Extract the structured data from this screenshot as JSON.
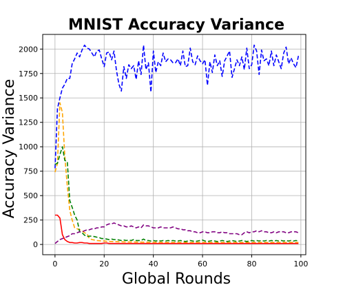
{
  "chart_data": {
    "type": "line",
    "title": "MNIST Accuracy Variance",
    "xlabel": "Global Rounds",
    "ylabel": "Accuracy Variance",
    "xlim": [
      -5,
      102
    ],
    "ylim": [
      -105,
      2150
    ],
    "xticks": [
      0,
      20,
      40,
      60,
      80,
      100
    ],
    "yticks": [
      0,
      250,
      500,
      750,
      1000,
      1250,
      1500,
      1750,
      2000
    ],
    "grid": true,
    "x": [
      0,
      1,
      2,
      3,
      4,
      5,
      6,
      7,
      8,
      9,
      10,
      11,
      12,
      13,
      14,
      15,
      16,
      17,
      18,
      19,
      20,
      21,
      22,
      23,
      24,
      25,
      26,
      27,
      28,
      29,
      30,
      31,
      32,
      33,
      34,
      35,
      36,
      37,
      38,
      39,
      40,
      41,
      42,
      43,
      44,
      45,
      46,
      47,
      48,
      49,
      50,
      51,
      52,
      53,
      54,
      55,
      56,
      57,
      58,
      59,
      60,
      61,
      62,
      63,
      64,
      65,
      66,
      67,
      68,
      69,
      70,
      71,
      72,
      73,
      74,
      75,
      76,
      77,
      78,
      79,
      80,
      81,
      82,
      83,
      84,
      85,
      86,
      87,
      88,
      89,
      90,
      91,
      92,
      93,
      94,
      95,
      96,
      97,
      98,
      99
    ],
    "series": [
      {
        "color": "#0000ff",
        "style": "dashed",
        "values": [
          780,
          1390,
          1500,
          1600,
          1640,
          1700,
          1700,
          1850,
          1900,
          1960,
          1920,
          1990,
          2040,
          2010,
          2000,
          1960,
          1920,
          1980,
          1990,
          1900,
          1820,
          1960,
          1970,
          1890,
          1980,
          1780,
          1640,
          1570,
          1820,
          1700,
          1840,
          1800,
          1830,
          1690,
          1880,
          1740,
          2040,
          1790,
          1860,
          1560,
          1980,
          1760,
          1870,
          1830,
          1960,
          1870,
          1900,
          1890,
          1860,
          1860,
          1900,
          1830,
          1980,
          1820,
          1830,
          2010,
          1870,
          1840,
          1930,
          1880,
          1850,
          1890,
          1630,
          1870,
          1760,
          1940,
          1830,
          1880,
          1720,
          1880,
          1930,
          1980,
          1710,
          1800,
          1890,
          1830,
          1920,
          1790,
          2010,
          1800,
          1840,
          2040,
          1980,
          1740,
          1990,
          1880,
          1900,
          1830,
          1980,
          1830,
          1940,
          1870,
          1800,
          1960,
          2020,
          1850,
          1910,
          1850,
          1810,
          1930
        ]
      },
      {
        "color": "#ffa500",
        "style": "dashed",
        "values": [
          740,
          830,
          1450,
          1350,
          900,
          600,
          350,
          250,
          170,
          160,
          150,
          140,
          120,
          110,
          60,
          50,
          45,
          40,
          38,
          35,
          35,
          32,
          30,
          30,
          28,
          28,
          27,
          27,
          26,
          26,
          25,
          25,
          25,
          24,
          24,
          24,
          23,
          23,
          22,
          22,
          22,
          21,
          21,
          21,
          20,
          20,
          20,
          20,
          20,
          20,
          20,
          20,
          20,
          20,
          20,
          20,
          20,
          20,
          20,
          20,
          20,
          20,
          20,
          20,
          20,
          20,
          20,
          20,
          20,
          20,
          20,
          20,
          20,
          20,
          20,
          20,
          20,
          20,
          20,
          20,
          20,
          20,
          20,
          20,
          20,
          20,
          20,
          20,
          20,
          20,
          20,
          20,
          20,
          20,
          20,
          20,
          20,
          20,
          20,
          20
        ]
      },
      {
        "color": "#008000",
        "style": "dashed",
        "values": [
          820,
          830,
          920,
          1000,
          860,
          850,
          450,
          380,
          300,
          250,
          130,
          120,
          95,
          80,
          85,
          85,
          80,
          75,
          70,
          60,
          60,
          55,
          50,
          55,
          50,
          50,
          45,
          40,
          45,
          40,
          45,
          40,
          50,
          40,
          40,
          40,
          55,
          40,
          40,
          35,
          40,
          35,
          40,
          35,
          40,
          35,
          40,
          35,
          40,
          35,
          35,
          40,
          35,
          30,
          35,
          40,
          35,
          30,
          35,
          40,
          45,
          35,
          30,
          35,
          40,
          35,
          30,
          35,
          40,
          35,
          30,
          35,
          40,
          35,
          30,
          35,
          40,
          35,
          30,
          35,
          40,
          35,
          40,
          35,
          40,
          35,
          40,
          35,
          40,
          35,
          40,
          35,
          40,
          35,
          40,
          35,
          40,
          35,
          40,
          35
        ]
      },
      {
        "color": "#800080",
        "style": "dashed",
        "values": [
          10,
          30,
          50,
          60,
          70,
          80,
          90,
          110,
          110,
          120,
          130,
          130,
          140,
          150,
          150,
          160,
          160,
          170,
          170,
          180,
          180,
          200,
          210,
          210,
          220,
          210,
          200,
          190,
          190,
          180,
          180,
          190,
          180,
          170,
          180,
          170,
          200,
          190,
          190,
          180,
          170,
          170,
          170,
          180,
          170,
          170,
          170,
          170,
          180,
          170,
          160,
          160,
          150,
          150,
          140,
          140,
          130,
          130,
          120,
          120,
          130,
          130,
          120,
          120,
          130,
          130,
          120,
          120,
          130,
          120,
          120,
          110,
          110,
          110,
          110,
          100,
          100,
          120,
          130,
          120,
          130,
          130,
          140,
          130,
          140,
          130,
          130,
          120,
          120,
          130,
          120,
          130,
          130,
          130,
          120,
          120,
          130,
          130,
          130,
          120
        ]
      },
      {
        "color": "#ff0000",
        "style": "solid",
        "values": [
          300,
          300,
          270,
          100,
          50,
          30,
          20,
          20,
          15,
          15,
          20,
          20,
          15,
          15,
          10,
          10,
          10,
          10,
          10,
          10,
          15,
          15,
          10,
          10,
          10,
          10,
          10,
          10,
          10,
          10,
          10,
          10,
          10,
          10,
          10,
          10,
          10,
          10,
          10,
          10,
          10,
          10,
          10,
          10,
          10,
          10,
          10,
          10,
          10,
          10,
          10,
          10,
          10,
          10,
          10,
          10,
          10,
          10,
          10,
          10,
          10,
          10,
          10,
          10,
          10,
          10,
          10,
          10,
          10,
          10,
          10,
          10,
          10,
          10,
          10,
          10,
          10,
          10,
          10,
          10,
          10,
          10,
          10,
          10,
          10,
          10,
          10,
          10,
          10,
          10,
          10,
          10,
          10,
          10,
          10,
          10,
          10,
          10,
          10,
          10
        ]
      }
    ]
  }
}
